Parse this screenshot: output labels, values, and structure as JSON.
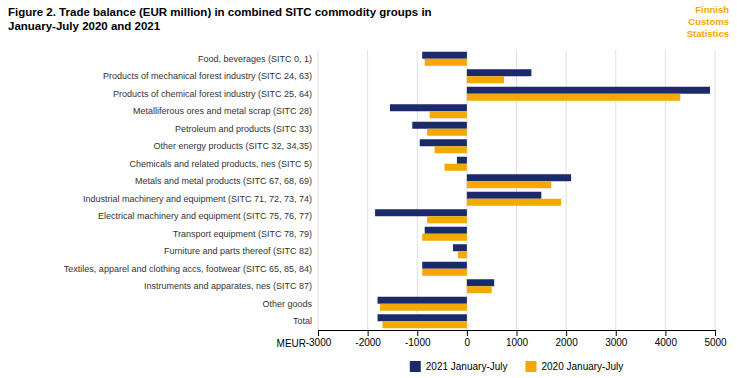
{
  "chart_data": {
    "type": "bar",
    "orientation": "horizontal",
    "title": "Figure 2. Trade balance (EUR million) in combined SITC commodity groups in\nJanuary-July 2020 and 2021",
    "annotations": [
      "Finnish\nCustoms\nStatistics"
    ],
    "categories": [
      "Food, beverages (SITC 0, 1)",
      "Products of mechanical forest industry (SITC 24, 63)",
      "Products of chemical forest industry (SITC 25, 64)",
      "Metalliferous ores and metal scrap (SITC 28)",
      "Petroleum and products (SITC 33)",
      "Other energy products (SITC 32, 34,35)",
      "Chemicals and related products, nes (SITC 5)",
      "Metals and metal products (SITC 67, 68, 69)",
      "Industrial machinery and equipment (SITC 71, 72, 73, 74)",
      "Electrical machinery and equipment (SITC 75, 76, 77)",
      "Transport equipment (SITC 78, 79)",
      "Furniture and parts thereof (SITC 82)",
      "Textiles, apparel and clothing accs, footwear (SITC 65, 85, 84)",
      "Instruments and apparates, nes (SITC 87)",
      "Other goods",
      "Total"
    ],
    "series": [
      {
        "name": "2021 January-July",
        "color": "#1b2a6b",
        "values": [
          -900,
          1300,
          4900,
          -1550,
          -1100,
          -950,
          -200,
          2100,
          1500,
          -1850,
          -850,
          -280,
          -900,
          550,
          -1800,
          -1800
        ]
      },
      {
        "name": "2020 January-July",
        "color": "#f5a800",
        "values": [
          -850,
          750,
          4300,
          -750,
          -800,
          -650,
          -450,
          1700,
          1900,
          -800,
          -900,
          -180,
          -900,
          500,
          -1750,
          -1700
        ]
      }
    ],
    "xlabel": "MEUR",
    "xlim": [
      -3000,
      5000
    ],
    "xticks": [
      -3000,
      -2000,
      -1000,
      0,
      1000,
      2000,
      3000,
      4000,
      5000
    ],
    "grid": true,
    "legend": "bottom"
  }
}
